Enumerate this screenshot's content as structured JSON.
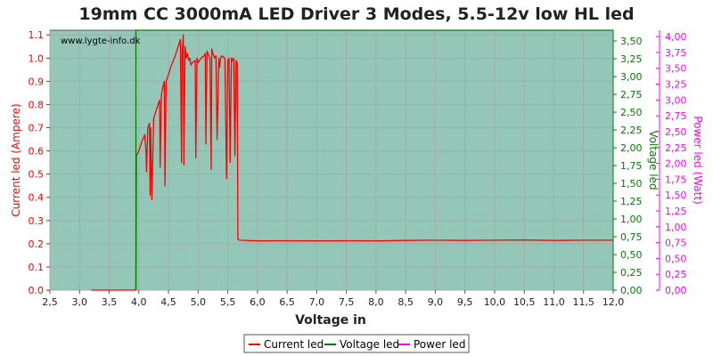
{
  "chart_data": {
    "type": "line",
    "title": "19mm CC 3000mA LED Driver 3 Modes, 5.5-12v low HL led",
    "watermark": "www.lygte-info.dk",
    "xlabel": "Voltage in",
    "ylabel_left": "Current led (Ampere)",
    "ylabel_right1": "Voltage led",
    "ylabel_right2": "Power led (Watt)",
    "xlim": [
      2.5,
      12.0
    ],
    "ylim_left": [
      0,
      1.12
    ],
    "ylim_right1": [
      0,
      3.65
    ],
    "ylim_right2": [
      0,
      4.1
    ],
    "x_ticks": [
      "2,5",
      "3,0",
      "3,5",
      "4,0",
      "4,5",
      "5,0",
      "5,5",
      "6,0",
      "6,5",
      "7,0",
      "7,5",
      "8,0",
      "8,5",
      "9,0",
      "9,5",
      "10,0",
      "10,5",
      "11,0",
      "11,5",
      "12,0"
    ],
    "x_tick_values": [
      2.5,
      3.0,
      3.5,
      4.0,
      4.5,
      5.0,
      5.5,
      6.0,
      6.5,
      7.0,
      7.5,
      8.0,
      8.5,
      9.0,
      9.5,
      10.0,
      10.5,
      11.0,
      11.5,
      12.0
    ],
    "y_left_ticks": [
      "0.0",
      "0.1",
      "0.2",
      "0.3",
      "0.4",
      "0.5",
      "0.6",
      "0.7",
      "0.8",
      "0.9",
      "1.0",
      "1.1"
    ],
    "y_left_tick_values": [
      0,
      0.1,
      0.2,
      0.3,
      0.4,
      0.5,
      0.6,
      0.7,
      0.8,
      0.9,
      1.0,
      1.1
    ],
    "y_right1_ticks": [
      "0,00",
      "0,25",
      "0,50",
      "0,75",
      "1,00",
      "1,25",
      "1,50",
      "1,75",
      "2,00",
      "2,25",
      "2,50",
      "2,75",
      "3,00",
      "3,25",
      "3,50"
    ],
    "y_right1_tick_values": [
      0,
      0.25,
      0.5,
      0.75,
      1.0,
      1.25,
      1.5,
      1.75,
      2.0,
      2.25,
      2.5,
      2.75,
      3.0,
      3.25,
      3.5
    ],
    "y_right2_ticks": [
      "0,00",
      "0,25",
      "0,50",
      "0,75",
      "1,00",
      "1,25",
      "1,50",
      "1,75",
      "2,00",
      "2,25",
      "2,50",
      "2,75",
      "3,00",
      "3,25",
      "3,50",
      "3,75",
      "4,00"
    ],
    "y_right2_tick_values": [
      0,
      0.25,
      0.5,
      0.75,
      1.0,
      1.25,
      1.5,
      1.75,
      2.0,
      2.25,
      2.5,
      2.75,
      3.0,
      3.25,
      3.5,
      3.75,
      4.0
    ],
    "grid": true,
    "legend_position": "bottom-center",
    "series": [
      {
        "name": "Current led",
        "axis": "left",
        "color": "#ff0000",
        "x": [
          3.2,
          3.4,
          3.6,
          3.8,
          3.95,
          3.96,
          4.0,
          4.05,
          4.1,
          4.12,
          4.13,
          4.15,
          4.18,
          4.19,
          4.2,
          4.22,
          4.25,
          4.3,
          4.35,
          4.36,
          4.38,
          4.4,
          4.43,
          4.44,
          4.46,
          4.5,
          4.55,
          4.6,
          4.65,
          4.7,
          4.72,
          4.73,
          4.75,
          4.76,
          4.78,
          4.8,
          4.82,
          4.84,
          4.86,
          4.88,
          4.9,
          4.95,
          4.96,
          4.98,
          5.0,
          5.05,
          5.1,
          5.12,
          5.13,
          5.15,
          5.2,
          5.22,
          5.23,
          5.25,
          5.28,
          5.3,
          5.32,
          5.35,
          5.36,
          5.38,
          5.4,
          5.45,
          5.48,
          5.5,
          5.52,
          5.54,
          5.56,
          5.58,
          5.6,
          5.62,
          5.64,
          5.66,
          5.67,
          5.7,
          6.0,
          6.5,
          7.0,
          7.5,
          8.0,
          8.5,
          9.0,
          9.5,
          10.0,
          10.5,
          11.0,
          11.5,
          12.0
        ],
        "y": [
          0.0,
          0.0,
          0.0,
          0.0,
          0.0,
          0.58,
          0.6,
          0.64,
          0.67,
          0.6,
          0.51,
          0.7,
          0.72,
          0.41,
          0.7,
          0.39,
          0.74,
          0.78,
          0.82,
          0.53,
          0.84,
          0.87,
          0.9,
          0.45,
          0.9,
          0.93,
          0.97,
          1.0,
          1.04,
          1.08,
          0.55,
          1.02,
          1.1,
          0.54,
          1.05,
          1.0,
          1.02,
          0.99,
          1.0,
          0.97,
          0.98,
          0.99,
          0.57,
          1.0,
          0.98,
          1.0,
          1.01,
          1.02,
          0.63,
          1.03,
          1.0,
          0.52,
          1.04,
          1.02,
          1.0,
          1.01,
          0.65,
          1.0,
          0.96,
          1.0,
          1.01,
          1.0,
          0.48,
          0.99,
          1.0,
          0.55,
          1.0,
          0.99,
          1.0,
          0.58,
          0.99,
          0.98,
          0.22,
          0.215,
          0.212,
          0.213,
          0.212,
          0.213,
          0.212,
          0.214,
          0.215,
          0.214,
          0.215,
          0.216,
          0.214,
          0.215,
          0.215
        ]
      },
      {
        "name": "Voltage led",
        "axis": "right1",
        "color": "#008000",
        "x": [
          3.95,
          3.951,
          12.0
        ],
        "y": [
          0.0,
          3.65,
          3.65
        ]
      },
      {
        "name": "Power led",
        "axis": "right2",
        "color": "#ff00ff",
        "x": [],
        "y": []
      }
    ]
  }
}
